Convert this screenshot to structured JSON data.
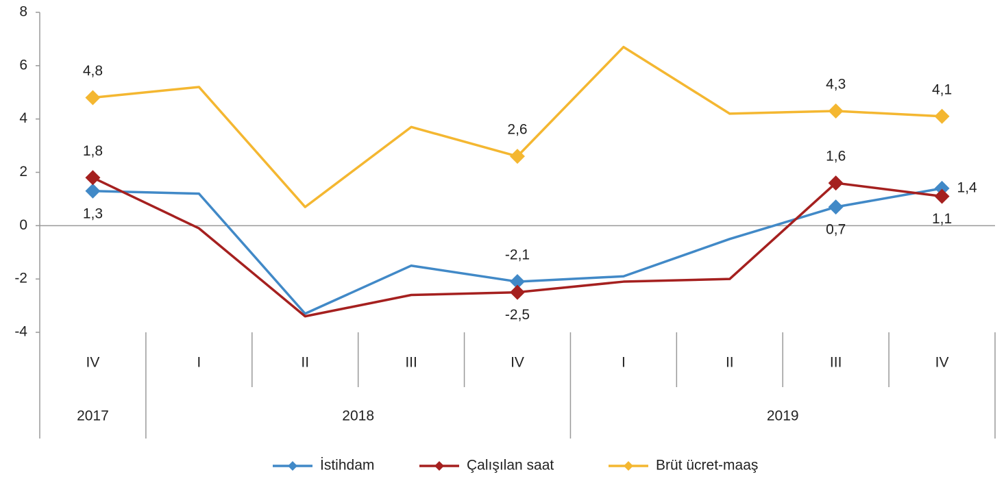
{
  "chart_data": {
    "type": "line",
    "categories": [
      "IV",
      "I",
      "II",
      "III",
      "IV",
      "I",
      "II",
      "III",
      "IV"
    ],
    "groups": [
      {
        "name": "2017",
        "count": 1
      },
      {
        "name": "2018",
        "count": 4
      },
      {
        "name": "2019",
        "count": 4
      }
    ],
    "series": [
      {
        "name": "İstihdam",
        "color": "#4189c7",
        "values": [
          1.3,
          1.2,
          -3.3,
          -1.5,
          -2.1,
          -1.9,
          -0.5,
          0.7,
          1.4
        ],
        "value_labels": [
          "1,3",
          null,
          null,
          null,
          "-2,1",
          null,
          null,
          "0,7",
          "1,4"
        ]
      },
      {
        "name": "Çalışılan saat",
        "color": "#a5201f",
        "values": [
          1.8,
          -0.1,
          -3.4,
          -2.6,
          -2.5,
          -2.1,
          -2.0,
          1.6,
          1.1
        ],
        "value_labels": [
          "1,8",
          null,
          null,
          null,
          "-2,5",
          null,
          null,
          "1,6",
          "1,1"
        ]
      },
      {
        "name": "Brüt ücret-maaş",
        "color": "#f4b731",
        "values": [
          4.8,
          5.2,
          0.7,
          3.7,
          2.6,
          6.7,
          4.2,
          4.3,
          4.1
        ],
        "value_labels": [
          "4,8",
          null,
          null,
          null,
          "2,6",
          null,
          null,
          "4,3",
          "4,1"
        ]
      }
    ],
    "ylim": [
      -4,
      8
    ],
    "yticks": [
      -4,
      -2,
      0,
      2,
      4,
      6,
      8
    ],
    "legend": "bottom"
  }
}
